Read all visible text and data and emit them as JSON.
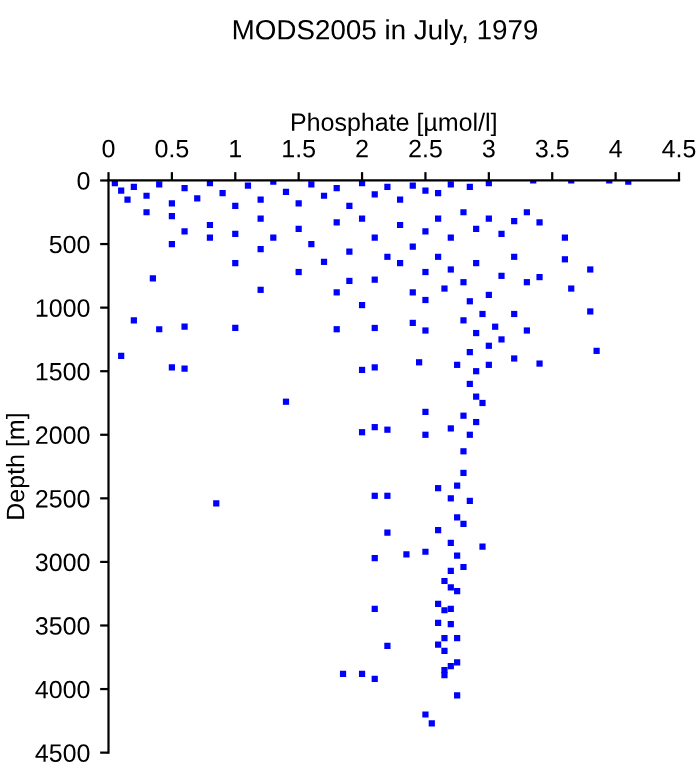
{
  "chart_data": {
    "type": "scatter",
    "title": "MODS2005 in July, 1979",
    "xlabel": "Phosphate [µmol/l]",
    "ylabel": "Depth [m]",
    "xlim": [
      0,
      4.5
    ],
    "xticks": [
      0,
      0.5,
      1,
      1.5,
      2,
      2.5,
      3,
      3.5,
      4,
      4.5
    ],
    "ylim": [
      4500,
      0
    ],
    "yticks": [
      0,
      500,
      1000,
      1500,
      2000,
      2500,
      3000,
      3500,
      4000,
      4500
    ],
    "grid": false,
    "marker": "square",
    "series": [
      {
        "color": "#0000ff",
        "x": [
          0.05,
          0.1,
          0.15,
          0.2,
          0.3,
          0.4,
          0.5,
          0.6,
          0.7,
          0.8,
          0.9,
          1.0,
          1.1,
          1.2,
          1.3,
          1.4,
          1.5,
          1.6,
          1.7,
          1.8,
          1.9,
          2.0,
          2.1,
          2.2,
          2.3,
          2.4,
          2.5,
          2.6,
          2.7,
          2.85,
          3.0,
          3.35,
          3.65,
          3.95,
          4.1,
          0.3,
          0.5,
          0.6,
          0.8,
          1.0,
          1.2,
          1.3,
          1.5,
          1.6,
          1.8,
          1.9,
          2.0,
          2.1,
          2.2,
          2.3,
          2.4,
          2.5,
          2.6,
          2.7,
          2.8,
          2.9,
          3.0,
          3.1,
          3.2,
          3.3,
          3.4,
          3.6,
          0.5,
          0.8,
          1.0,
          1.2,
          1.5,
          1.7,
          1.9,
          2.1,
          2.3,
          2.4,
          2.5,
          2.6,
          2.65,
          2.7,
          2.8,
          2.85,
          2.9,
          3.0,
          3.1,
          3.2,
          3.3,
          3.4,
          3.6,
          3.65,
          3.8,
          0.35,
          1.2,
          1.8,
          2.0,
          2.5,
          0.2,
          0.4,
          0.6,
          1.0,
          1.8,
          2.1,
          2.4,
          2.5,
          2.8,
          2.9,
          2.95,
          3.0,
          3.05,
          3.1,
          3.2,
          3.3,
          2.85,
          3.0,
          2.9,
          3.4,
          3.8,
          3.85,
          0.1,
          0.5,
          0.6,
          2.0,
          2.1,
          2.45,
          3.2,
          2.75,
          2.85,
          2.9,
          2.95,
          2.8,
          2.9,
          2.7,
          2.85,
          2.8,
          2.5,
          1.4,
          2.0,
          2.1,
          2.2,
          2.5,
          2.8,
          2.75,
          2.7,
          2.85,
          2.6,
          2.1,
          2.2,
          0.85,
          2.75,
          2.8,
          2.6,
          2.2,
          2.7,
          2.95,
          2.5,
          2.35,
          2.1,
          2.75,
          2.7,
          2.8,
          2.65,
          2.7,
          2.75,
          2.6,
          2.65,
          2.1,
          2.7,
          2.6,
          2.7,
          2.2,
          2.6,
          2.65,
          2.75,
          2.65,
          2.65,
          2.7,
          2.75,
          1.85,
          2.0,
          2.1,
          2.65,
          2.75,
          2.5,
          2.55
        ],
        "values": [
          20,
          80,
          150,
          50,
          120,
          30,
          180,
          60,
          140,
          20,
          100,
          200,
          40,
          150,
          10,
          90,
          180,
          30,
          120,
          60,
          200,
          20,
          110,
          50,
          150,
          40,
          80,
          100,
          30,
          50,
          20,
          0,
          0,
          0,
          10,
          250,
          280,
          400,
          350,
          420,
          300,
          450,
          380,
          500,
          330,
          560,
          300,
          450,
          600,
          350,
          520,
          400,
          300,
          450,
          250,
          380,
          300,
          420,
          320,
          250,
          330,
          450,
          500,
          450,
          650,
          540,
          720,
          640,
          790,
          780,
          650,
          880,
          720,
          600,
          850,
          700,
          800,
          950,
          650,
          900,
          750,
          600,
          800,
          760,
          620,
          850,
          700,
          770,
          860,
          880,
          980,
          940,
          1100,
          1170,
          1150,
          1160,
          1170,
          1160,
          1120,
          1180,
          1100,
          1200,
          1050,
          1300,
          1150,
          1250,
          1050,
          1180,
          1350,
          1450,
          1500,
          1440,
          1030,
          1340,
          1380,
          1470,
          1480,
          1490,
          1470,
          1430,
          1400,
          1450,
          1600,
          1700,
          1750,
          1850,
          1900,
          1950,
          2000,
          2130,
          1820,
          1740,
          1980,
          1940,
          1960,
          2000,
          2300,
          2400,
          2500,
          2520,
          2420,
          2480,
          2480,
          2540,
          2650,
          2700,
          2750,
          2770,
          2850,
          2880,
          2920,
          2940,
          2970,
          2950,
          3070,
          3040,
          3150,
          3200,
          3230,
          3330,
          3380,
          3370,
          3370,
          3480,
          3490,
          3660,
          3650,
          3600,
          3600,
          3700,
          3850,
          3820,
          3790,
          3880,
          3880,
          3920,
          3890,
          4050,
          4200,
          4270
        ]
      }
    ]
  }
}
